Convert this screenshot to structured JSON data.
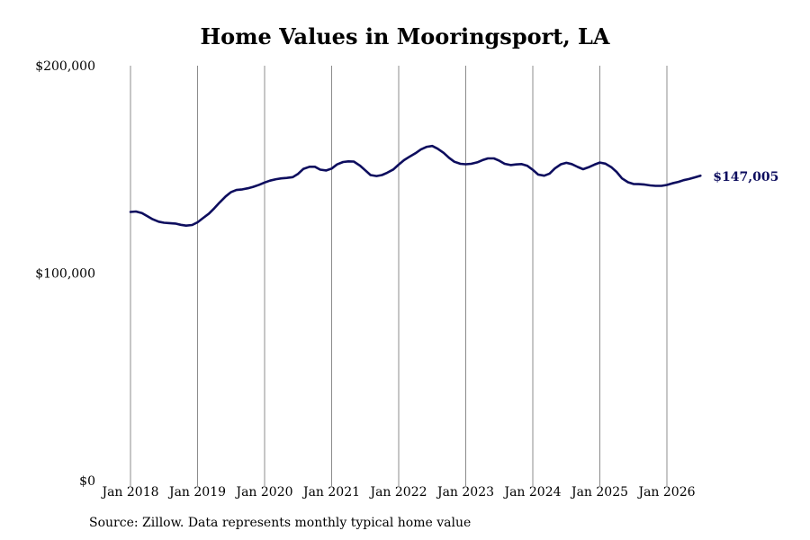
{
  "chart_data": {
    "type": "line",
    "title": "Home Values in Mooringsport, LA",
    "xlabel": "",
    "ylabel": "",
    "ylim": [
      0,
      200000
    ],
    "y_ticks": [
      {
        "value": 0,
        "label": "$0"
      },
      {
        "value": 100000,
        "label": "$100,000"
      },
      {
        "value": 200000,
        "label": "$200,000"
      }
    ],
    "x_ticks": [
      {
        "value": 2018.0,
        "label": "Jan 2018"
      },
      {
        "value": 2019.0,
        "label": "Jan 2019"
      },
      {
        "value": 2020.0,
        "label": "Jan 2020"
      },
      {
        "value": 2021.0,
        "label": "Jan 2021"
      },
      {
        "value": 2022.0,
        "label": "Jan 2022"
      },
      {
        "value": 2023.0,
        "label": "Jan 2023"
      },
      {
        "value": 2024.0,
        "label": "Jan 2024"
      },
      {
        "value": 2025.0,
        "label": "Jan 2025"
      },
      {
        "value": 2026.0,
        "label": "Jan 2026"
      }
    ],
    "grid": "vertical",
    "series": [
      {
        "color": "#0d0d5e",
        "x": [
          2018.0,
          2018.08,
          2018.17,
          2018.25,
          2018.33,
          2018.42,
          2018.5,
          2018.58,
          2018.67,
          2018.75,
          2018.83,
          2018.92,
          2019.0,
          2019.08,
          2019.17,
          2019.25,
          2019.33,
          2019.42,
          2019.5,
          2019.58,
          2019.67,
          2019.75,
          2019.83,
          2019.92,
          2020.0,
          2020.08,
          2020.17,
          2020.25,
          2020.33,
          2020.42,
          2020.5,
          2020.58,
          2020.67,
          2020.75,
          2020.83,
          2020.92,
          2021.0,
          2021.08,
          2021.17,
          2021.25,
          2021.33,
          2021.42,
          2021.5,
          2021.58,
          2021.67,
          2021.75,
          2021.83,
          2021.92,
          2022.0,
          2022.08,
          2022.17,
          2022.25,
          2022.33,
          2022.42,
          2022.5,
          2022.58,
          2022.67,
          2022.75,
          2022.83,
          2022.92,
          2023.0,
          2023.08,
          2023.17,
          2023.25,
          2023.33,
          2023.42,
          2023.5,
          2023.58,
          2023.67,
          2023.75,
          2023.83,
          2023.92,
          2024.0,
          2024.08,
          2024.17,
          2024.25,
          2024.33,
          2024.42,
          2024.5,
          2024.58,
          2024.67,
          2024.75,
          2024.83,
          2024.92,
          2025.0,
          2025.08,
          2025.17,
          2025.25,
          2025.33,
          2025.42,
          2025.5,
          2025.58,
          2025.67,
          2025.75,
          2025.83,
          2025.92,
          2026.0,
          2026.08,
          2026.17,
          2026.25,
          2026.33,
          2026.42,
          2026.5
        ],
        "values": [
          129500,
          129700,
          129000,
          127500,
          126000,
          124800,
          124300,
          124100,
          123900,
          123300,
          122900,
          123200,
          124500,
          126500,
          128700,
          131300,
          134100,
          137000,
          139100,
          140100,
          140400,
          140900,
          141600,
          142600,
          143700,
          144600,
          145300,
          145700,
          145900,
          146300,
          147900,
          150300,
          151300,
          151300,
          149900,
          149500,
          150400,
          152400,
          153600,
          153900,
          153800,
          151900,
          149600,
          147300,
          146800,
          147300,
          148400,
          150000,
          152300,
          154500,
          156300,
          157800,
          159600,
          160900,
          161300,
          160000,
          158000,
          155600,
          153700,
          152700,
          152500,
          152700,
          153400,
          154500,
          155300,
          155300,
          154200,
          152700,
          152100,
          152400,
          152600,
          151700,
          149800,
          147500,
          147000,
          148000,
          150500,
          152500,
          153200,
          152600,
          151200,
          150100,
          151000,
          152300,
          153300,
          152800,
          151100,
          148800,
          145700,
          143800,
          143000,
          142900,
          142700,
          142300,
          142100,
          142100,
          142500,
          143300,
          144000,
          144800,
          145400,
          146200,
          147005
        ]
      }
    ],
    "end_label": "$147,005",
    "source": "Source: Zillow. Data represents monthly typical home value"
  }
}
